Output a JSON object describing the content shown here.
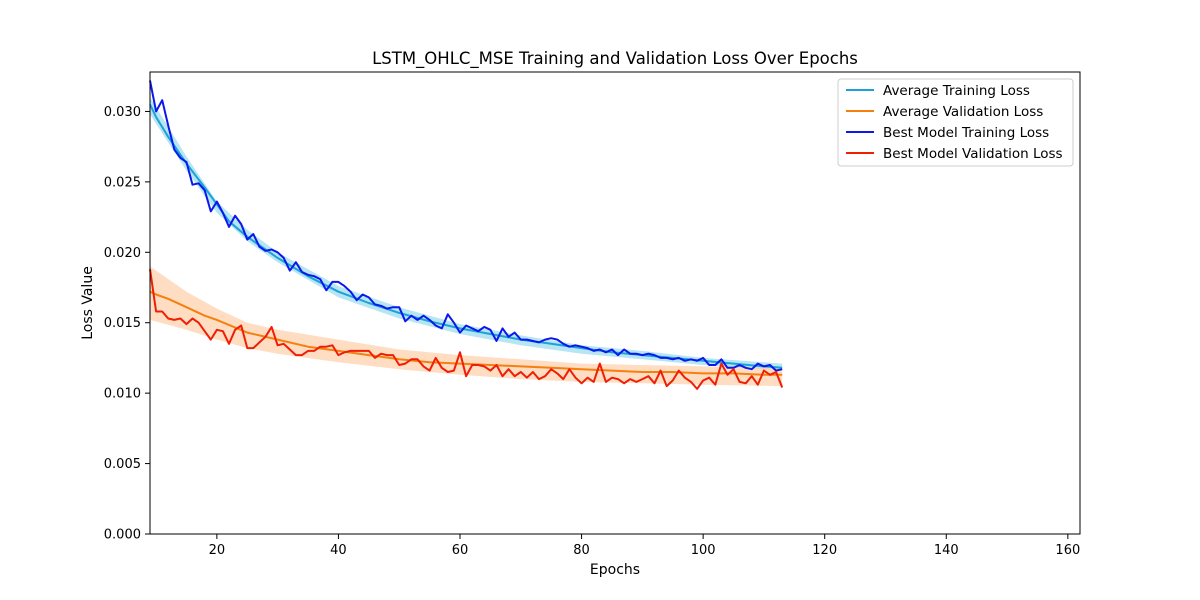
{
  "chart_data": {
    "type": "line",
    "title": "LSTM_OHLC_MSE  Training and Validation Loss Over Epochs",
    "xlabel": "Epochs",
    "ylabel": "Loss Value",
    "xlim": [
      9,
      162
    ],
    "ylim": [
      0,
      0.0328
    ],
    "xticks": [
      20,
      40,
      60,
      80,
      100,
      120,
      140,
      160
    ],
    "yticks": [
      0.0,
      0.005,
      0.01,
      0.015,
      0.02,
      0.025,
      0.03
    ],
    "ytick_labels": [
      "0.000",
      "0.005",
      "0.010",
      "0.015",
      "0.020",
      "0.025",
      "0.030"
    ],
    "grid": false,
    "legend_position": "top-right",
    "bands": {
      "training": {
        "color": "#9fdcef",
        "epochs": [
          9,
          15,
          20,
          25,
          30,
          40,
          50,
          60,
          70,
          80,
          90,
          100,
          113
        ],
        "lower": [
          0.0298,
          0.0258,
          0.0228,
          0.0208,
          0.0193,
          0.0168,
          0.0153,
          0.0142,
          0.0134,
          0.0128,
          0.0124,
          0.012,
          0.0116
        ],
        "upper": [
          0.031,
          0.0268,
          0.0236,
          0.0216,
          0.02,
          0.0176,
          0.0161,
          0.0149,
          0.0141,
          0.0134,
          0.013,
          0.0125,
          0.0121
        ]
      },
      "validation": {
        "color": "#fdd2ad",
        "epochs": [
          9,
          15,
          20,
          25,
          30,
          40,
          50,
          60,
          70,
          80,
          90,
          100,
          113
        ],
        "lower": [
          0.0152,
          0.0145,
          0.0138,
          0.0132,
          0.0128,
          0.0122,
          0.0117,
          0.0113,
          0.011,
          0.0108,
          0.0107,
          0.0106,
          0.0105
        ],
        "upper": [
          0.019,
          0.0172,
          0.016,
          0.015,
          0.0145,
          0.0138,
          0.0131,
          0.0127,
          0.0124,
          0.0121,
          0.012,
          0.0119,
          0.0118
        ]
      }
    },
    "series": [
      {
        "name": "Average Training Loss",
        "color": "#1ba3d8",
        "x": [
          9,
          10,
          12,
          15,
          18,
          20,
          22,
          25,
          28,
          30,
          35,
          40,
          45,
          50,
          55,
          60,
          65,
          70,
          75,
          80,
          85,
          90,
          95,
          100,
          105,
          110,
          113
        ],
        "y": [
          0.0305,
          0.0296,
          0.0282,
          0.0263,
          0.0246,
          0.0234,
          0.0222,
          0.0211,
          0.0202,
          0.0196,
          0.0183,
          0.0172,
          0.0164,
          0.0157,
          0.0151,
          0.0146,
          0.0142,
          0.0138,
          0.0135,
          0.0132,
          0.0129,
          0.0127,
          0.0125,
          0.0123,
          0.0121,
          0.0119,
          0.0118
        ]
      },
      {
        "name": "Average Validation Loss",
        "color": "#f77f0e",
        "x": [
          9,
          10,
          12,
          15,
          18,
          20,
          25,
          30,
          35,
          40,
          45,
          50,
          55,
          60,
          65,
          70,
          75,
          80,
          85,
          90,
          95,
          100,
          105,
          110,
          113
        ],
        "y": [
          0.0172,
          0.017,
          0.0167,
          0.0161,
          0.0155,
          0.0152,
          0.0143,
          0.0138,
          0.0133,
          0.013,
          0.0127,
          0.0124,
          0.0122,
          0.0121,
          0.012,
          0.0119,
          0.0118,
          0.0117,
          0.0116,
          0.0115,
          0.0115,
          0.0114,
          0.0114,
          0.0113,
          0.0113
        ]
      },
      {
        "name": "Best Model Training Loss",
        "color": "#0a17ee",
        "x": [
          9,
          10,
          11,
          12,
          13,
          14,
          15,
          16,
          17,
          18,
          19,
          20,
          21,
          22,
          23,
          24,
          25,
          26,
          27,
          28,
          29,
          30,
          31,
          32,
          33,
          34,
          35,
          36,
          37,
          38,
          39,
          40,
          41,
          42,
          43,
          44,
          45,
          46,
          47,
          48,
          49,
          50,
          51,
          52,
          53,
          54,
          55,
          56,
          57,
          58,
          59,
          60,
          61,
          62,
          63,
          64,
          65,
          66,
          67,
          68,
          69,
          70,
          71,
          72,
          73,
          74,
          75,
          76,
          77,
          78,
          79,
          80,
          81,
          82,
          83,
          84,
          85,
          86,
          87,
          88,
          89,
          90,
          91,
          92,
          93,
          94,
          95,
          96,
          97,
          98,
          99,
          100,
          101,
          102,
          103,
          104,
          105,
          106,
          107,
          108,
          109,
          110,
          111,
          112,
          113
        ],
        "y": [
          0.0322,
          0.03,
          0.0308,
          0.029,
          0.0273,
          0.0267,
          0.0264,
          0.0248,
          0.0249,
          0.0244,
          0.0229,
          0.0236,
          0.0228,
          0.0218,
          0.0226,
          0.022,
          0.0209,
          0.0213,
          0.0204,
          0.0201,
          0.0202,
          0.02,
          0.0196,
          0.0187,
          0.0193,
          0.0186,
          0.0184,
          0.0183,
          0.0181,
          0.0173,
          0.0179,
          0.0179,
          0.0176,
          0.0172,
          0.0166,
          0.017,
          0.0168,
          0.0163,
          0.0162,
          0.016,
          0.0161,
          0.0161,
          0.0151,
          0.0155,
          0.0152,
          0.0155,
          0.0152,
          0.0148,
          0.0146,
          0.0156,
          0.015,
          0.0143,
          0.0148,
          0.0146,
          0.0144,
          0.0147,
          0.0145,
          0.0137,
          0.0146,
          0.014,
          0.0143,
          0.0138,
          0.0138,
          0.0137,
          0.0136,
          0.0138,
          0.0139,
          0.0138,
          0.0135,
          0.0133,
          0.0134,
          0.0133,
          0.0132,
          0.013,
          0.0131,
          0.0129,
          0.0131,
          0.0127,
          0.0131,
          0.0128,
          0.0128,
          0.0127,
          0.0128,
          0.0127,
          0.0125,
          0.0125,
          0.0124,
          0.0125,
          0.0123,
          0.0124,
          0.0123,
          0.0125,
          0.012,
          0.012,
          0.0124,
          0.0118,
          0.0118,
          0.012,
          0.0118,
          0.0117,
          0.0121,
          0.0119,
          0.012,
          0.0116,
          0.0117
        ]
      },
      {
        "name": "Best Model Validation Loss",
        "color": "#f01e05",
        "x": [
          9,
          10,
          11,
          12,
          13,
          14,
          15,
          16,
          17,
          18,
          19,
          20,
          21,
          22,
          23,
          24,
          25,
          26,
          27,
          28,
          29,
          30,
          31,
          32,
          33,
          34,
          35,
          36,
          37,
          38,
          39,
          40,
          41,
          42,
          43,
          44,
          45,
          46,
          47,
          48,
          49,
          50,
          51,
          52,
          53,
          54,
          55,
          56,
          57,
          58,
          59,
          60,
          61,
          62,
          63,
          64,
          65,
          66,
          67,
          68,
          69,
          70,
          71,
          72,
          73,
          74,
          75,
          76,
          77,
          78,
          79,
          80,
          81,
          82,
          83,
          84,
          85,
          86,
          87,
          88,
          89,
          90,
          91,
          92,
          93,
          94,
          95,
          96,
          97,
          98,
          99,
          100,
          101,
          102,
          103,
          104,
          105,
          106,
          107,
          108,
          109,
          110,
          111,
          112,
          113
        ],
        "y": [
          0.0188,
          0.0158,
          0.0158,
          0.0153,
          0.0152,
          0.0153,
          0.0149,
          0.0153,
          0.015,
          0.0144,
          0.0138,
          0.0145,
          0.0144,
          0.0135,
          0.0145,
          0.0148,
          0.0132,
          0.0132,
          0.0136,
          0.014,
          0.0147,
          0.0134,
          0.0135,
          0.0131,
          0.0127,
          0.0127,
          0.013,
          0.013,
          0.0133,
          0.0133,
          0.0134,
          0.0127,
          0.0129,
          0.013,
          0.013,
          0.013,
          0.013,
          0.0125,
          0.0128,
          0.0127,
          0.0127,
          0.012,
          0.0121,
          0.0124,
          0.0124,
          0.0119,
          0.0116,
          0.0125,
          0.0118,
          0.0115,
          0.0116,
          0.0129,
          0.0112,
          0.012,
          0.012,
          0.0119,
          0.0116,
          0.012,
          0.0112,
          0.0117,
          0.0112,
          0.0115,
          0.0111,
          0.0115,
          0.011,
          0.0112,
          0.0117,
          0.0114,
          0.011,
          0.0117,
          0.0111,
          0.0107,
          0.0111,
          0.0108,
          0.0121,
          0.0108,
          0.0111,
          0.011,
          0.0107,
          0.011,
          0.0108,
          0.011,
          0.0112,
          0.0107,
          0.0116,
          0.0105,
          0.0109,
          0.0116,
          0.0111,
          0.0108,
          0.0103,
          0.0109,
          0.0111,
          0.0106,
          0.0121,
          0.0113,
          0.0117,
          0.0108,
          0.0107,
          0.0112,
          0.0106,
          0.0116,
          0.0113,
          0.0115,
          0.0104
        ]
      }
    ]
  }
}
